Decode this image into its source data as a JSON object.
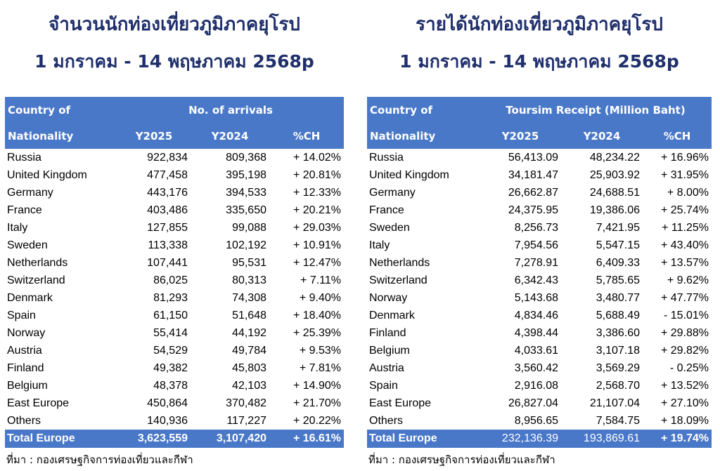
{
  "left": {
    "title": "จำนวนนักท่องเที่ยวภูมิภาคยุโรป",
    "subtitle": "1 มกราคม - 14 พฤษภาคม 2568p",
    "header": {
      "country_line1": "Country of",
      "country_line2": "Nationality",
      "group": "No. of arrivals",
      "y2025": "Y2025",
      "y2024": "Y2024",
      "ch": "%CH"
    },
    "rows": [
      {
        "country": "Russia",
        "y2025": "922,834",
        "y2024": "809,368",
        "ch": "+ 14.02%"
      },
      {
        "country": "United Kingdom",
        "y2025": "477,458",
        "y2024": "395,198",
        "ch": "+ 20.81%"
      },
      {
        "country": "Germany",
        "y2025": "443,176",
        "y2024": "394,533",
        "ch": "+ 12.33%"
      },
      {
        "country": "France",
        "y2025": "403,486",
        "y2024": "335,650",
        "ch": "+ 20.21%"
      },
      {
        "country": "Italy",
        "y2025": "127,855",
        "y2024": "99,088",
        "ch": "+ 29.03%"
      },
      {
        "country": "Sweden",
        "y2025": "113,338",
        "y2024": "102,192",
        "ch": "+ 10.91%"
      },
      {
        "country": "Netherlands",
        "y2025": "107,441",
        "y2024": "95,531",
        "ch": "+ 12.47%"
      },
      {
        "country": "Switzerland",
        "y2025": "86,025",
        "y2024": "80,313",
        "ch": "+ 7.11%"
      },
      {
        "country": "Denmark",
        "y2025": "81,293",
        "y2024": "74,308",
        "ch": "+ 9.40%"
      },
      {
        "country": "Spain",
        "y2025": "61,150",
        "y2024": "51,648",
        "ch": "+ 18.40%"
      },
      {
        "country": "Norway",
        "y2025": "55,414",
        "y2024": "44,192",
        "ch": "+ 25.39%"
      },
      {
        "country": "Austria",
        "y2025": "54,529",
        "y2024": "49,784",
        "ch": "+ 9.53%"
      },
      {
        "country": "Finland",
        "y2025": "49,382",
        "y2024": "45,803",
        "ch": "+ 7.81%"
      },
      {
        "country": "Belgium",
        "y2025": "48,378",
        "y2024": "42,103",
        "ch": "+ 14.90%"
      },
      {
        "country": "East Europe",
        "y2025": "450,864",
        "y2024": "370,482",
        "ch": "+ 21.70%"
      },
      {
        "country": "Others",
        "y2025": "140,936",
        "y2024": "117,227",
        "ch": "+ 20.22%"
      }
    ],
    "total": {
      "country": "Total Europe",
      "y2025": "3,623,559",
      "y2024": "3,107,420",
      "ch": "+ 16.61%"
    },
    "source": "ที่มา : กองเศรษฐกิจการท่องเที่ยวและกีฬา"
  },
  "right": {
    "title": "รายได้นักท่องเที่ยวภูมิภาคยุโรป",
    "subtitle": "1 มกราคม - 14 พฤษภาคม 2568p",
    "header": {
      "country_line1": "Country of",
      "country_line2": "Nationality",
      "group": "Toursim Receipt (Million Baht)",
      "y2025": "Y2025",
      "y2024": "Y2024",
      "ch": "%CH"
    },
    "rows": [
      {
        "country": "Russia",
        "y2025": "56,413.09",
        "y2024": "48,234.22",
        "ch": "+ 16.96%"
      },
      {
        "country": "United Kingdom",
        "y2025": "34,181.47",
        "y2024": "25,903.92",
        "ch": "+ 31.95%"
      },
      {
        "country": "Germany",
        "y2025": "26,662.87",
        "y2024": "24,688.51",
        "ch": "+ 8.00%"
      },
      {
        "country": "France",
        "y2025": "24,375.95",
        "y2024": "19,386.06",
        "ch": "+ 25.74%"
      },
      {
        "country": "Sweden",
        "y2025": "8,256.73",
        "y2024": "7,421.95",
        "ch": "+ 11.25%"
      },
      {
        "country": "Italy",
        "y2025": "7,954.56",
        "y2024": "5,547.15",
        "ch": "+ 43.40%"
      },
      {
        "country": "Netherlands",
        "y2025": "7,278.91",
        "y2024": "6,409.33",
        "ch": "+ 13.57%"
      },
      {
        "country": "Switzerland",
        "y2025": "6,342.43",
        "y2024": "5,785.65",
        "ch": "+ 9.62%"
      },
      {
        "country": "Norway",
        "y2025": "5,143.68",
        "y2024": "3,480.77",
        "ch": "+ 47.77%"
      },
      {
        "country": "Denmark",
        "y2025": "4,834.46",
        "y2024": "5,688.49",
        "ch": "- 15.01%"
      },
      {
        "country": "Finland",
        "y2025": "4,398.44",
        "y2024": "3,386.60",
        "ch": "+ 29.88%"
      },
      {
        "country": "Belgium",
        "y2025": "4,033.61",
        "y2024": "3,107.18",
        "ch": "+ 29.82%"
      },
      {
        "country": "Austria",
        "y2025": "3,560.42",
        "y2024": "3,569.29",
        "ch": "- 0.25%"
      },
      {
        "country": "Spain",
        "y2025": "2,916.08",
        "y2024": "2,568.70",
        "ch": "+ 13.52%"
      },
      {
        "country": "East Europe",
        "y2025": "26,827.04",
        "y2024": "21,107.04",
        "ch": "+ 27.10%"
      },
      {
        "country": "Others",
        "y2025": "8,956.65",
        "y2024": "7,584.75",
        "ch": "+ 18.09%"
      }
    ],
    "total": {
      "country": "Total Europe",
      "y2025": "232,136.39",
      "y2024": "193,869.61",
      "ch": "+ 19.74%"
    },
    "source": "ที่มา : กองเศรษฐกิจการท่องเที่ยวและกีฬา"
  },
  "colors": {
    "header_bg": "#4a78c8",
    "title": "#1f2f6b"
  }
}
